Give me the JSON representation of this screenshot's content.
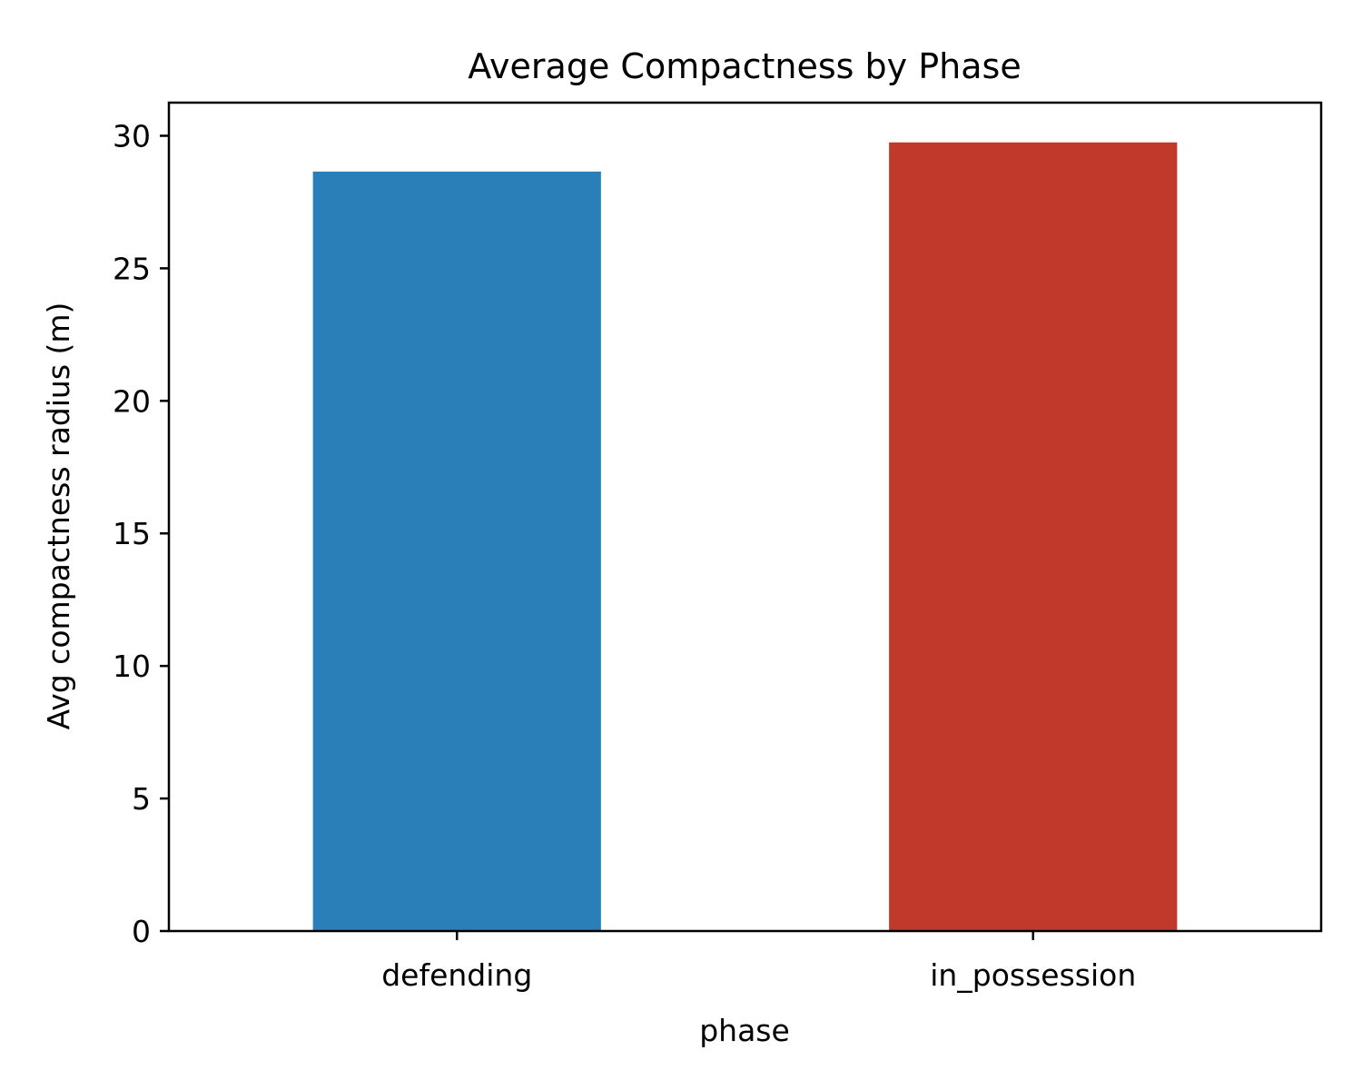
{
  "chart_data": {
    "type": "bar",
    "title": "Average Compactness by Phase",
    "xlabel": "phase",
    "ylabel": "Avg compactness radius (m)",
    "categories": [
      "defending",
      "in_possession"
    ],
    "values": [
      28.65,
      29.75
    ],
    "colors": [
      "#2a7fb8",
      "#c0392b"
    ],
    "ylim": [
      0,
      31.25
    ],
    "yticks": [
      0,
      5,
      10,
      15,
      20,
      25,
      30
    ],
    "ytick_labels": [
      "0",
      "5",
      "10",
      "15",
      "20",
      "25",
      "30"
    ],
    "grid": false,
    "legend": "none"
  }
}
